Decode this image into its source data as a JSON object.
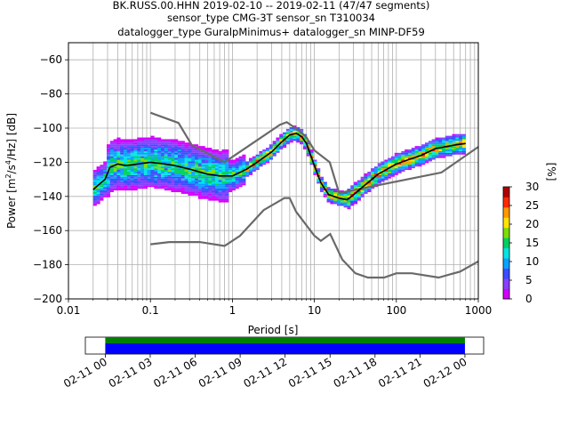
{
  "figure": {
    "title_line1": "BK.RUSS.00.HHN   2019-02-10 -- 2019-02-11  (47/47 segments)",
    "title_line2": "sensor_type CMG-3T sensor_sn T310034",
    "title_line3": "datalogger_type GuralpMinimus+ datalogger_sn MINP-DF59"
  },
  "chart_data": {
    "type": "heatmap",
    "xlabel": "Period [s]",
    "ylabel_prefix": "Power [",
    "ylabel_unit_base": "m",
    "ylabel_unit_exp1": "2",
    "ylabel_unit_mid": "/s",
    "ylabel_unit_exp2": "4",
    "ylabel_unit_end": "/Hz] [dB]",
    "x_scale": "log",
    "xlim": [
      0.01,
      1000
    ],
    "ylim": [
      -200,
      -50
    ],
    "grid": true,
    "x_ticks": [
      {
        "v": 0.01,
        "label": "0.01"
      },
      {
        "v": 0.1,
        "label": "0.1"
      },
      {
        "v": 1,
        "label": "1"
      },
      {
        "v": 10,
        "label": "10"
      },
      {
        "v": 100,
        "label": "100"
      },
      {
        "v": 1000,
        "label": "1000"
      }
    ],
    "y_ticks": [
      {
        "v": -200,
        "label": "−200"
      },
      {
        "v": -180,
        "label": "−180"
      },
      {
        "v": -160,
        "label": "−160"
      },
      {
        "v": -140,
        "label": "−140"
      },
      {
        "v": -120,
        "label": "−120"
      },
      {
        "v": -100,
        "label": "−100"
      },
      {
        "v": -80,
        "label": "−80"
      },
      {
        "v": -60,
        "label": "−60"
      }
    ],
    "noise_model_high": [
      [
        0.1,
        -91
      ],
      [
        0.22,
        -97
      ],
      [
        0.32,
        -110
      ],
      [
        0.8,
        -120
      ],
      [
        3.8,
        -98
      ],
      [
        4.6,
        -96.5
      ],
      [
        6.3,
        -101
      ],
      [
        7.9,
        -105
      ],
      [
        10,
        -113
      ],
      [
        15.4,
        -120
      ],
      [
        20,
        -138
      ],
      [
        354.8,
        -126
      ],
      [
        1000,
        -111
      ]
    ],
    "noise_model_low": [
      [
        0.1,
        -168
      ],
      [
        0.17,
        -166.7
      ],
      [
        0.4,
        -166.7
      ],
      [
        0.8,
        -169
      ],
      [
        1.24,
        -163
      ],
      [
        2.4,
        -148
      ],
      [
        4.3,
        -141
      ],
      [
        5,
        -141
      ],
      [
        6,
        -149
      ],
      [
        10,
        -163
      ],
      [
        12,
        -166
      ],
      [
        15.6,
        -162
      ],
      [
        21.9,
        -177
      ],
      [
        31.6,
        -185
      ],
      [
        45,
        -187.5
      ],
      [
        70.8,
        -187.5
      ],
      [
        100,
        -185
      ],
      [
        154.5,
        -185
      ],
      [
        328,
        -187.5
      ],
      [
        600,
        -184
      ],
      [
        1000,
        -178
      ]
    ],
    "mode_curve": [
      [
        0.02,
        -136
      ],
      [
        0.025,
        -132
      ],
      [
        0.028,
        -130
      ],
      [
        0.032,
        -123
      ],
      [
        0.04,
        -121
      ],
      [
        0.05,
        -122
      ],
      [
        0.07,
        -121
      ],
      [
        0.1,
        -120
      ],
      [
        0.15,
        -121
      ],
      [
        0.2,
        -122
      ],
      [
        0.3,
        -124
      ],
      [
        0.5,
        -127
      ],
      [
        0.7,
        -128
      ],
      [
        1,
        -128
      ],
      [
        1.5,
        -124
      ],
      [
        2,
        -120
      ],
      [
        3,
        -114
      ],
      [
        4,
        -108
      ],
      [
        5,
        -104
      ],
      [
        6,
        -103
      ],
      [
        7,
        -105
      ],
      [
        8,
        -109
      ],
      [
        10,
        -122
      ],
      [
        12,
        -132
      ],
      [
        15,
        -139
      ],
      [
        20,
        -141
      ],
      [
        25,
        -142
      ],
      [
        30,
        -139
      ],
      [
        40,
        -134
      ],
      [
        60,
        -127
      ],
      [
        100,
        -121
      ],
      [
        150,
        -118
      ],
      [
        200,
        -116
      ],
      [
        300,
        -112
      ],
      [
        500,
        -110
      ],
      [
        700,
        -109
      ]
    ],
    "colorbar": {
      "label": "[%]",
      "min": 0,
      "max": 30,
      "ticks": [
        {
          "v": 0,
          "label": "0"
        },
        {
          "v": 5,
          "label": "5"
        },
        {
          "v": 10,
          "label": "10"
        },
        {
          "v": 15,
          "label": "15"
        },
        {
          "v": 20,
          "label": "20"
        },
        {
          "v": 25,
          "label": "25"
        },
        {
          "v": 30,
          "label": "30"
        }
      ],
      "colors": [
        "#ffffff",
        "#d400ff",
        "#8a3fff",
        "#3b4dff",
        "#0aa0ff",
        "#00e5e5",
        "#00d060",
        "#7dde00",
        "#ffe400",
        "#ff9800",
        "#ff2a00",
        "#b00000"
      ]
    },
    "timeline": {
      "type": "timeline",
      "coverage": [
        0.05,
        0.953
      ],
      "bar_colors": {
        "upper": "#008000",
        "lower": "#0000ff"
      },
      "ticks": [
        {
          "label": "02-11 00"
        },
        {
          "label": "02-11 03"
        },
        {
          "label": "02-11 06"
        },
        {
          "label": "02-11 09"
        },
        {
          "label": "02-11 12"
        },
        {
          "label": "02-11 15"
        },
        {
          "label": "02-11 18"
        },
        {
          "label": "02-11 21"
        },
        {
          "label": "02-12 00"
        }
      ]
    }
  }
}
